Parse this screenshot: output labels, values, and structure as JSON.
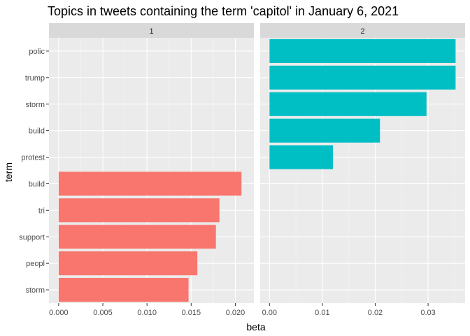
{
  "chart_data": {
    "type": "bar",
    "orientation": "horizontal",
    "title": "Topics in tweets containing the term 'capitol' in January 6, 2021",
    "xlabel": "beta",
    "ylabel": "term",
    "grid": true,
    "legend": "none",
    "y_categories": [
      "polic",
      "trump",
      "storm",
      "build",
      "protest",
      "build",
      "tri",
      "support",
      "peopl",
      "storm"
    ],
    "panels": [
      {
        "strip_label": "1",
        "color": "#F8766D",
        "xlim": [
          -0.0011,
          0.0221
        ],
        "x_ticks": [
          0.0,
          0.005,
          0.01,
          0.015,
          0.02
        ],
        "x_tick_labels": [
          "0.000",
          "0.005",
          "0.010",
          "0.015",
          "0.020"
        ],
        "values": [
          null,
          null,
          null,
          null,
          null,
          0.0207,
          0.0182,
          0.0178,
          0.0157,
          0.0147
        ]
      },
      {
        "strip_label": "2",
        "color": "#00BFC4",
        "xlim": [
          -0.00176,
          0.037
        ],
        "x_ticks": [
          0.0,
          0.01,
          0.02,
          0.03
        ],
        "x_tick_labels": [
          "0.00",
          "0.01",
          "0.02",
          "0.03"
        ],
        "values": [
          0.0352,
          0.0352,
          0.0297,
          0.0209,
          0.012,
          null,
          null,
          null,
          null,
          null
        ]
      }
    ]
  }
}
